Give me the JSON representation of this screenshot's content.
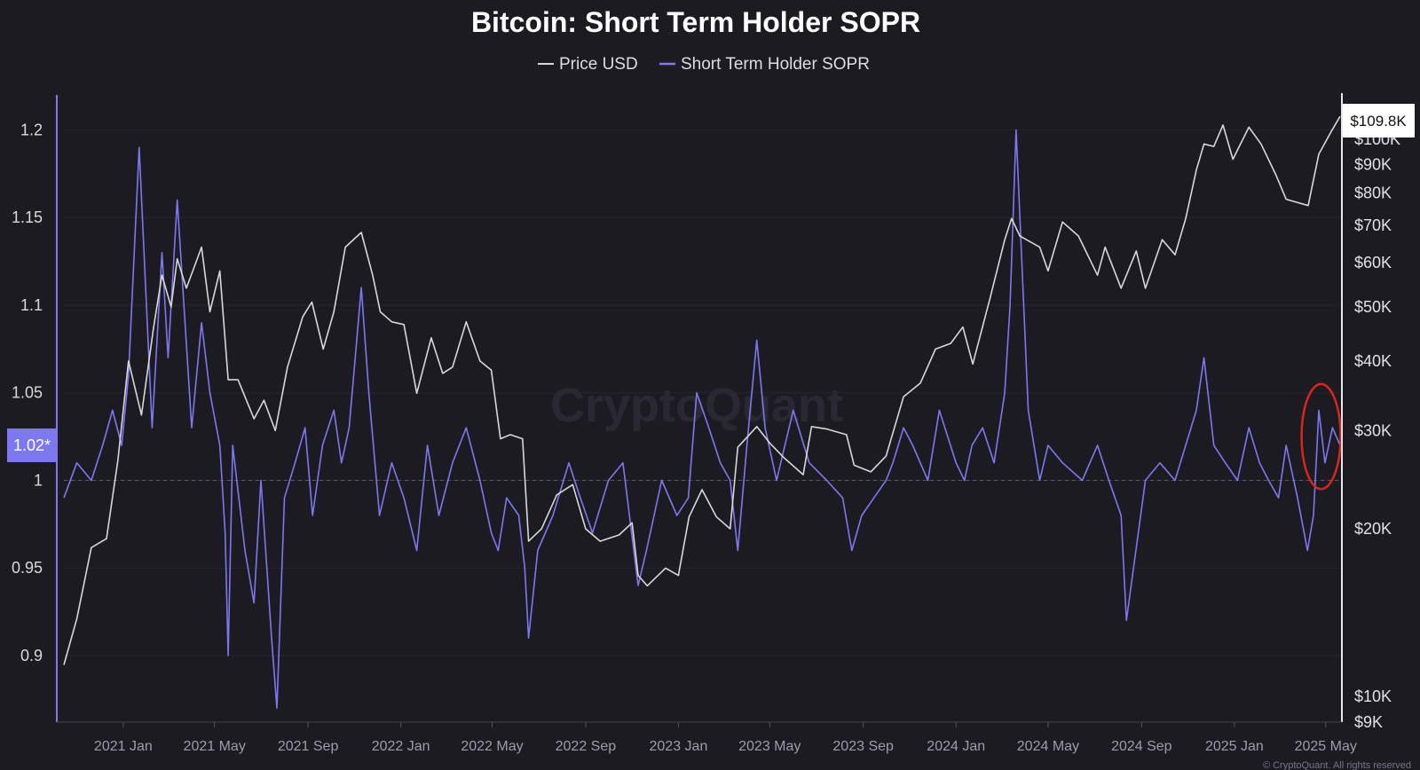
{
  "chart_data": {
    "type": "line",
    "title": "Bitcoin: Short Term Holder SOPR",
    "legend": {
      "placement": "top-center",
      "entries": [
        {
          "name": "Price USD",
          "color": "#d8d8d8"
        },
        {
          "name": "Short Term Holder SOPR",
          "color": "#7d78f0"
        }
      ]
    },
    "x_ticks": [
      "2021 Jan",
      "2021 May",
      "2021 Sep",
      "2022 Jan",
      "2022 May",
      "2022 Sep",
      "2023 Jan",
      "2023 May",
      "2023 Sep",
      "2024 Jan",
      "2024 May",
      "2024 Sep",
      "2025 Jan",
      "2025 May"
    ],
    "xlim": [
      "2020-10-15",
      "2025-05-20"
    ],
    "left_axis": {
      "ticks": [
        "1.2",
        "1.15",
        "1.1",
        "1.05",
        "1",
        "0.95",
        "0.9"
      ],
      "ylim": [
        0.862,
        1.22
      ],
      "current_label": "1.02*",
      "reference_line": 1.0
    },
    "right_axis": {
      "scale": "log",
      "ticks": [
        "$100K",
        "$90K",
        "$80K",
        "$70K",
        "$60K",
        "$50K",
        "$40K",
        "$30K",
        "$20K",
        "$10K",
        "$9K"
      ],
      "ylim": [
        9000,
        120000
      ],
      "current_label": "$109.8K"
    },
    "grid": true,
    "watermark": "CryptoQuant",
    "footer": "© CryptoQuant. All rights reserved",
    "highlight": {
      "shape": "ellipse",
      "color": "#d9261c",
      "date": "2025-04-25",
      "range": [
        0.995,
        1.055
      ]
    },
    "series": [
      {
        "name": "Price USD",
        "color": "#d8d8d8",
        "axis": "right",
        "x": [
          "2020-10-15",
          "2020-11-01",
          "2020-11-20",
          "2020-12-10",
          "2020-12-25",
          "2021-01-08",
          "2021-01-25",
          "2021-02-10",
          "2021-02-21",
          "2021-03-05",
          "2021-03-13",
          "2021-03-25",
          "2021-04-14",
          "2021-04-25",
          "2021-05-08",
          "2021-05-19",
          "2021-06-01",
          "2021-06-22",
          "2021-07-05",
          "2021-07-20",
          "2021-08-05",
          "2021-08-25",
          "2021-09-06",
          "2021-09-21",
          "2021-10-05",
          "2021-10-20",
          "2021-11-10",
          "2021-11-25",
          "2021-12-05",
          "2021-12-20",
          "2022-01-05",
          "2022-01-22",
          "2022-02-10",
          "2022-02-25",
          "2022-03-10",
          "2022-03-28",
          "2022-04-15",
          "2022-04-30",
          "2022-05-12",
          "2022-05-25",
          "2022-06-10",
          "2022-06-18",
          "2022-07-05",
          "2022-07-25",
          "2022-08-15",
          "2022-09-01",
          "2022-09-20",
          "2022-10-15",
          "2022-11-01",
          "2022-11-09",
          "2022-11-21",
          "2022-12-15",
          "2023-01-01",
          "2023-01-15",
          "2023-02-01",
          "2023-02-20",
          "2023-03-10",
          "2023-03-20",
          "2023-04-14",
          "2023-05-01",
          "2023-05-20",
          "2023-06-14",
          "2023-06-25",
          "2023-07-15",
          "2023-08-10",
          "2023-08-20",
          "2023-09-11",
          "2023-10-01",
          "2023-10-24",
          "2023-11-15",
          "2023-12-05",
          "2023-12-25",
          "2024-01-10",
          "2024-01-23",
          "2024-02-15",
          "2024-03-05",
          "2024-03-14",
          "2024-03-25",
          "2024-04-20",
          "2024-05-01",
          "2024-05-20",
          "2024-06-10",
          "2024-07-05",
          "2024-07-15",
          "2024-08-05",
          "2024-08-25",
          "2024-09-06",
          "2024-09-28",
          "2024-10-15",
          "2024-10-29",
          "2024-11-12",
          "2024-11-22",
          "2024-12-05",
          "2024-12-17",
          "2024-12-30",
          "2025-01-20",
          "2025-02-05",
          "2025-02-25",
          "2025-03-10",
          "2025-04-08",
          "2025-04-22",
          "2025-05-08",
          "2025-05-20"
        ],
        "y": [
          11400,
          13800,
          18500,
          19200,
          26500,
          40000,
          32000,
          46000,
          57000,
          50000,
          61000,
          54000,
          64000,
          49000,
          58000,
          37000,
          37000,
          31500,
          34000,
          30000,
          39000,
          48000,
          51000,
          42000,
          49000,
          64000,
          68000,
          57000,
          49000,
          47000,
          46500,
          35000,
          44000,
          38000,
          39000,
          47000,
          40000,
          38500,
          29000,
          29500,
          29000,
          19000,
          20000,
          23000,
          24000,
          20000,
          19000,
          19500,
          20500,
          16500,
          15800,
          17000,
          16500,
          21000,
          23500,
          21000,
          20000,
          28000,
          30500,
          28500,
          26800,
          25000,
          30500,
          30200,
          29500,
          26000,
          25300,
          27000,
          34500,
          36500,
          42000,
          43000,
          46000,
          39500,
          52000,
          66000,
          72000,
          67000,
          64000,
          58000,
          71000,
          67000,
          57000,
          64000,
          54000,
          63000,
          54000,
          66000,
          62000,
          72000,
          88000,
          98000,
          97000,
          106000,
          92000,
          105000,
          98000,
          86000,
          78000,
          76000,
          94000,
          103000,
          109800
        ]
      },
      {
        "name": "Short Term Holder SOPR",
        "color": "#7d78f0",
        "axis": "left",
        "x": [
          "2020-10-15",
          "2020-11-01",
          "2020-11-20",
          "2020-12-05",
          "2020-12-18",
          "2020-12-30",
          "2021-01-08",
          "2021-01-22",
          "2021-02-08",
          "2021-02-21",
          "2021-03-01",
          "2021-03-13",
          "2021-04-01",
          "2021-04-14",
          "2021-04-25",
          "2021-05-08",
          "2021-05-15",
          "2021-05-19",
          "2021-05-25",
          "2021-06-10",
          "2021-06-22",
          "2021-07-01",
          "2021-07-15",
          "2021-07-22",
          "2021-08-01",
          "2021-08-15",
          "2021-08-28",
          "2021-09-07",
          "2021-09-20",
          "2021-10-05",
          "2021-10-15",
          "2021-10-25",
          "2021-11-10",
          "2021-11-20",
          "2021-12-04",
          "2021-12-20",
          "2022-01-05",
          "2022-01-22",
          "2022-02-05",
          "2022-02-20",
          "2022-03-10",
          "2022-03-28",
          "2022-04-15",
          "2022-04-30",
          "2022-05-09",
          "2022-05-20",
          "2022-06-05",
          "2022-06-13",
          "2022-06-18",
          "2022-06-30",
          "2022-07-20",
          "2022-08-10",
          "2022-08-25",
          "2022-09-10",
          "2022-10-01",
          "2022-10-20",
          "2022-11-09",
          "2022-11-20",
          "2022-12-10",
          "2022-12-30",
          "2023-01-14",
          "2023-01-25",
          "2023-02-10",
          "2023-02-25",
          "2023-03-10",
          "2023-03-20",
          "2023-04-01",
          "2023-04-14",
          "2023-04-25",
          "2023-05-10",
          "2023-06-01",
          "2023-06-15",
          "2023-06-22",
          "2023-07-15",
          "2023-08-05",
          "2023-08-17",
          "2023-08-30",
          "2023-09-15",
          "2023-10-01",
          "2023-10-10",
          "2023-10-24",
          "2023-11-05",
          "2023-11-25",
          "2023-12-10",
          "2024-01-01",
          "2024-01-12",
          "2024-01-22",
          "2024-02-05",
          "2024-02-20",
          "2024-03-05",
          "2024-03-12",
          "2024-03-20",
          "2024-04-05",
          "2024-04-20",
          "2024-05-01",
          "2024-05-20",
          "2024-06-15",
          "2024-07-05",
          "2024-07-20",
          "2024-08-05",
          "2024-08-12",
          "2024-09-06",
          "2024-09-25",
          "2024-10-15",
          "2024-10-29",
          "2024-11-12",
          "2024-11-22",
          "2024-12-05",
          "2024-12-20",
          "2025-01-05",
          "2025-01-20",
          "2025-02-03",
          "2025-02-15",
          "2025-02-28",
          "2025-03-10",
          "2025-03-25",
          "2025-04-07",
          "2025-04-15",
          "2025-04-22",
          "2025-04-30",
          "2025-05-10",
          "2025-05-20"
        ],
        "y": [
          0.99,
          1.01,
          1.0,
          1.02,
          1.04,
          1.02,
          1.06,
          1.19,
          1.03,
          1.13,
          1.07,
          1.16,
          1.03,
          1.09,
          1.05,
          1.02,
          0.97,
          0.9,
          1.02,
          0.96,
          0.93,
          1.0,
          0.91,
          0.87,
          0.99,
          1.01,
          1.03,
          0.98,
          1.02,
          1.04,
          1.01,
          1.03,
          1.11,
          1.05,
          0.98,
          1.01,
          0.99,
          0.96,
          1.02,
          0.98,
          1.01,
          1.03,
          1.0,
          0.97,
          0.96,
          0.99,
          0.98,
          0.95,
          0.91,
          0.96,
          0.98,
          1.01,
          0.99,
          0.97,
          1.0,
          1.01,
          0.94,
          0.96,
          1.0,
          0.98,
          0.99,
          1.05,
          1.03,
          1.01,
          1.0,
          0.96,
          1.02,
          1.08,
          1.03,
          1.0,
          1.04,
          1.02,
          1.01,
          1.0,
          0.99,
          0.96,
          0.98,
          0.99,
          1.0,
          1.01,
          1.03,
          1.02,
          1.0,
          1.04,
          1.01,
          1.0,
          1.02,
          1.03,
          1.01,
          1.05,
          1.1,
          1.2,
          1.04,
          1.0,
          1.02,
          1.01,
          1.0,
          1.02,
          1.0,
          0.98,
          0.92,
          1.0,
          1.01,
          1.0,
          1.02,
          1.04,
          1.07,
          1.02,
          1.01,
          1.0,
          1.03,
          1.01,
          1.0,
          0.99,
          1.02,
          0.99,
          0.96,
          0.98,
          1.04,
          1.01,
          1.03,
          1.02
        ]
      }
    ]
  }
}
